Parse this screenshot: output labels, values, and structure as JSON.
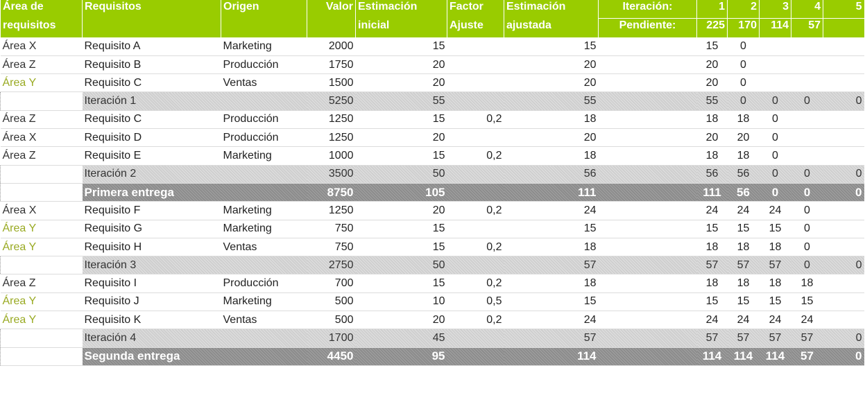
{
  "header": {
    "area_l1": "Área de",
    "area_l2": "requisitos",
    "req": "Requisitos",
    "origen": "Origen",
    "valor": "Valor",
    "est_ini_l1": "Estimación",
    "est_ini_l2": "inicial",
    "factor_l1": "Factor",
    "factor_l2": "Ajuste",
    "est_aj_l1": "Estimación",
    "est_aj_l2": "ajustada",
    "iteracion_label": "Iteración:",
    "pendiente_label": "Pendiente:",
    "iterations": [
      "1",
      "2",
      "3",
      "4",
      "5"
    ],
    "pendiente": [
      "225",
      "170",
      "114",
      "57",
      ""
    ]
  },
  "colors": {
    "header_green": "#99cc00",
    "area_y": "#99aa22",
    "iteration_row": "#cfcfcf",
    "entrega_row": "#8c8c8c"
  },
  "rows": [
    {
      "type": "req",
      "area": "Área X",
      "req": "Requisito A",
      "origen": "Marketing",
      "valor": "2000",
      "ini": "15",
      "factor": "",
      "aj": "15",
      "it": [
        "15",
        "0",
        "",
        "",
        ""
      ]
    },
    {
      "type": "req",
      "area": "Área Z",
      "req": "Requisito B",
      "origen": "Producción",
      "valor": "1750",
      "ini": "20",
      "factor": "",
      "aj": "20",
      "it": [
        "20",
        "0",
        "",
        "",
        ""
      ]
    },
    {
      "type": "req",
      "area": "Área Y",
      "req": "Requisito C",
      "origen": "Ventas",
      "valor": "1500",
      "ini": "20",
      "factor": "",
      "aj": "20",
      "it": [
        "20",
        "0",
        "",
        "",
        ""
      ]
    },
    {
      "type": "iter",
      "req": "Iteración 1",
      "valor": "5250",
      "ini": "55",
      "aj": "55",
      "it": [
        "55",
        "0",
        "0",
        "0",
        "0"
      ]
    },
    {
      "type": "req",
      "area": "Área Z",
      "req": "Requisito C",
      "origen": "Producción",
      "valor": "1250",
      "ini": "15",
      "factor": "0,2",
      "aj": "18",
      "it": [
        "18",
        "18",
        "0",
        "",
        ""
      ]
    },
    {
      "type": "req",
      "area": "Área X",
      "req": "Requisito D",
      "origen": "Producción",
      "valor": "1250",
      "ini": "20",
      "factor": "",
      "aj": "20",
      "it": [
        "20",
        "20",
        "0",
        "",
        ""
      ]
    },
    {
      "type": "req",
      "area": "Área Z",
      "req": "Requisito E",
      "origen": "Marketing",
      "valor": "1000",
      "ini": "15",
      "factor": "0,2",
      "aj": "18",
      "it": [
        "18",
        "18",
        "0",
        "",
        ""
      ]
    },
    {
      "type": "iter",
      "req": "Iteración 2",
      "valor": "3500",
      "ini": "50",
      "aj": "56",
      "it": [
        "56",
        "56",
        "0",
        "0",
        "0"
      ]
    },
    {
      "type": "entrega",
      "req": "Primera entrega",
      "valor": "8750",
      "ini": "105",
      "aj": "111",
      "it": [
        "111",
        "56",
        "0",
        "0",
        "0"
      ]
    },
    {
      "type": "req",
      "area": "Área X",
      "req": "Requisito F",
      "origen": "Marketing",
      "valor": "1250",
      "ini": "20",
      "factor": "0,2",
      "aj": "24",
      "it": [
        "24",
        "24",
        "24",
        "0",
        ""
      ]
    },
    {
      "type": "req",
      "area": "Área Y",
      "req": "Requisito G",
      "origen": "Marketing",
      "valor": "750",
      "ini": "15",
      "factor": "",
      "aj": "15",
      "it": [
        "15",
        "15",
        "15",
        "0",
        ""
      ]
    },
    {
      "type": "req",
      "area": "Área Y",
      "req": "Requisito H",
      "origen": "Ventas",
      "valor": "750",
      "ini": "15",
      "factor": "0,2",
      "aj": "18",
      "it": [
        "18",
        "18",
        "18",
        "0",
        ""
      ]
    },
    {
      "type": "iter",
      "req": "Iteración 3",
      "valor": "2750",
      "ini": "50",
      "aj": "57",
      "it": [
        "57",
        "57",
        "57",
        "0",
        "0"
      ]
    },
    {
      "type": "req",
      "area": "Área Z",
      "req": "Requisito I",
      "origen": "Producción",
      "valor": "700",
      "ini": "15",
      "factor": "0,2",
      "aj": "18",
      "it": [
        "18",
        "18",
        "18",
        "18",
        ""
      ]
    },
    {
      "type": "req",
      "area": "Área Y",
      "req": "Requisito J",
      "origen": "Marketing",
      "valor": "500",
      "ini": "10",
      "factor": "0,5",
      "aj": "15",
      "it": [
        "15",
        "15",
        "15",
        "15",
        ""
      ]
    },
    {
      "type": "req",
      "area": "Área Y",
      "req": "Requisito K",
      "origen": "Ventas",
      "valor": "500",
      "ini": "20",
      "factor": "0,2",
      "aj": "24",
      "it": [
        "24",
        "24",
        "24",
        "24",
        ""
      ]
    },
    {
      "type": "iter",
      "req": "Iteración 4",
      "valor": "1700",
      "ini": "45",
      "aj": "57",
      "it": [
        "57",
        "57",
        "57",
        "57",
        "0"
      ]
    },
    {
      "type": "entrega",
      "req": "Segunda entrega",
      "valor": "4450",
      "ini": "95",
      "aj": "114",
      "it": [
        "114",
        "114",
        "114",
        "57",
        "0"
      ]
    }
  ]
}
